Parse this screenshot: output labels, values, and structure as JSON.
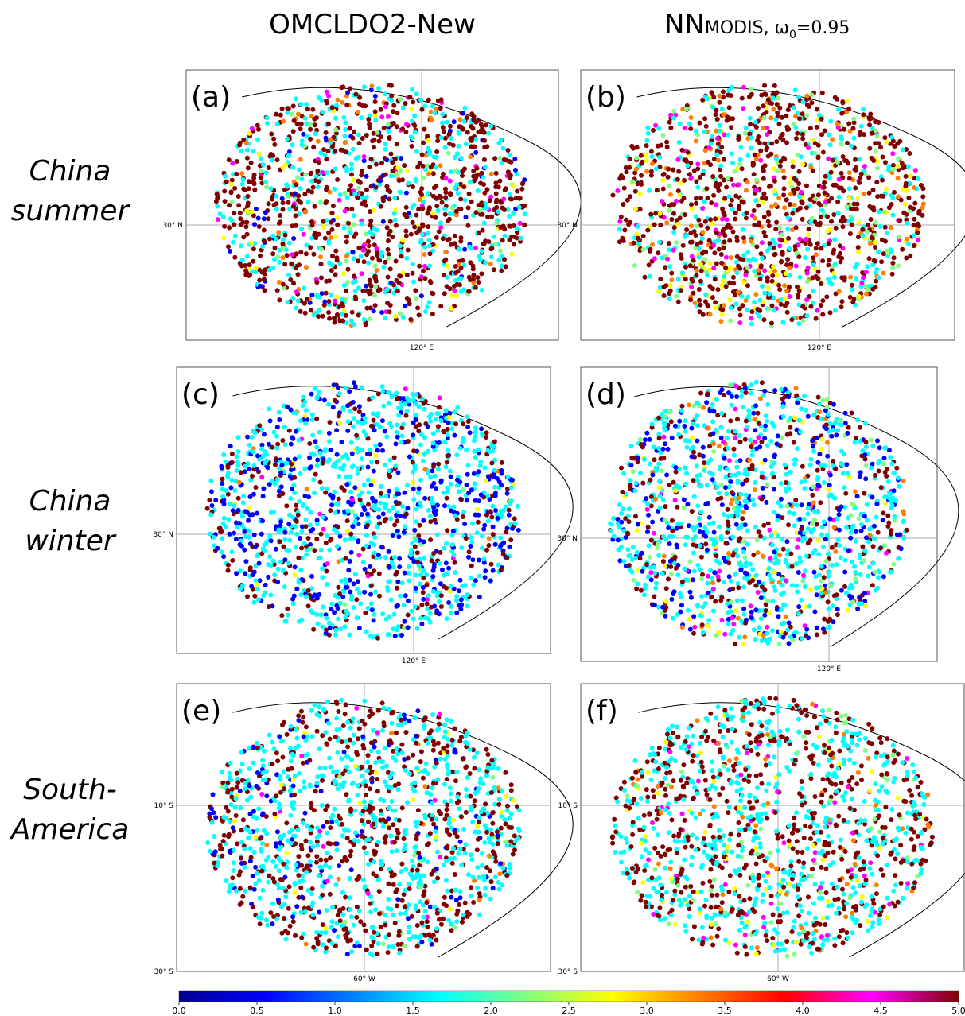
{
  "columns": [
    {
      "title": "OMCLDO2-New"
    },
    {
      "title": "NN",
      "title_sub": "MODIS, ω",
      "title_subscript": "0",
      "title_tail": "=0.95"
    }
  ],
  "rows": [
    {
      "label": [
        "China",
        "summer"
      ],
      "lat_label": "30° N",
      "lon_label": "120° E",
      "panels": [
        {
          "label": "(a)"
        },
        {
          "label": "(b)"
        }
      ]
    },
    {
      "label": [
        "China",
        "winter"
      ],
      "lat_label": "30° N",
      "lon_label": "120° E",
      "panels": [
        {
          "label": "(c)"
        },
        {
          "label": "(d)"
        }
      ]
    },
    {
      "label": [
        "South-",
        "America"
      ],
      "lat_label": "10° S",
      "lat_label_2": "30° S",
      "lon_label": "60° W",
      "panels": [
        {
          "label": "(e)"
        },
        {
          "label": "(f)"
        }
      ]
    }
  ],
  "colorbar": {
    "lim": [
      0,
      5
    ],
    "colors": [
      "#00008f",
      "#0000ff",
      "#0080ff",
      "#00ffff",
      "#80ff80",
      "#ffff00",
      "#ff8000",
      "#ff0000",
      "#ff00ff",
      "#800000"
    ],
    "ticks": [
      {
        "value": 0,
        "label": "0.0"
      },
      {
        "value": 0.5,
        "label": "0.5"
      },
      {
        "value": 1,
        "label": "1.0"
      },
      {
        "value": 1.5,
        "label": "1.5"
      },
      {
        "value": 2,
        "label": "2.0"
      },
      {
        "value": 2.5,
        "label": "2.5"
      },
      {
        "value": 3,
        "label": "3.0"
      },
      {
        "value": 3.5,
        "label": "3.5"
      },
      {
        "value": 4,
        "label": "4.0"
      },
      {
        "value": 4.5,
        "label": "4.5"
      },
      {
        "value": 5,
        "label": "5.0"
      }
    ]
  }
}
